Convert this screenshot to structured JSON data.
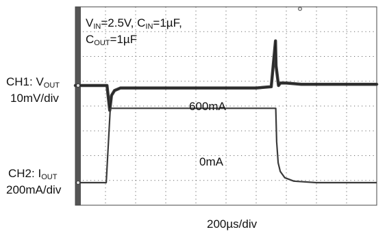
{
  "chart_data": {
    "type": "line",
    "title": "",
    "conditions": {
      "line1": [
        "V",
        "IN",
        "=2.5V, C",
        "IN",
        "=1µF,"
      ],
      "line2": [
        "C",
        "OUT",
        "=1µF"
      ]
    },
    "x_axis": {
      "label": "200µs/div",
      "divisions": 10,
      "units_per_div_us": 200,
      "xlim_us": [
        0,
        2000
      ]
    },
    "grid": true,
    "colors": {
      "background": "#ffffff",
      "grid": "#6b6b6b",
      "trace": "#3a3a3a",
      "left_strip": "#555555",
      "frame": "#444444"
    },
    "series": [
      {
        "name": "CH1: VOUT",
        "channel_label": [
          "CH1: V",
          "OUT"
        ],
        "scale_label": "10mV/div",
        "unit": "mV",
        "units_per_div": 10,
        "x_us": [
          0,
          210,
          228,
          240,
          260,
          300,
          400,
          500,
          600,
          700,
          800,
          900,
          1000,
          1100,
          1200,
          1300,
          1328,
          1332,
          1348,
          1360,
          1400,
          1500,
          1600,
          1700,
          1800,
          1900,
          2000
        ],
        "y_mV": [
          0,
          0,
          -10,
          -4,
          -2,
          -1,
          -1,
          -1,
          -1,
          -1,
          -1,
          -1,
          -1,
          -1,
          -1,
          -0.5,
          18,
          8,
          0,
          1,
          1,
          0.5,
          0.5,
          0.5,
          0.5,
          0.5,
          0.5
        ]
      },
      {
        "name": "CH2: IOUT",
        "channel_label": [
          "CH2: I",
          "OUT"
        ],
        "scale_label": "200mA/div",
        "unit": "mA",
        "units_per_div": 200,
        "x_us": [
          0,
          205,
          232,
          1330,
          1336,
          1346,
          1360,
          1390,
          1450,
          1600,
          2000
        ],
        "y_mA": [
          0,
          0,
          600,
          600,
          330,
          160,
          90,
          40,
          12,
          0,
          0
        ]
      }
    ],
    "annotations": [
      {
        "text": "600mA"
      },
      {
        "text": "0mA"
      }
    ]
  }
}
